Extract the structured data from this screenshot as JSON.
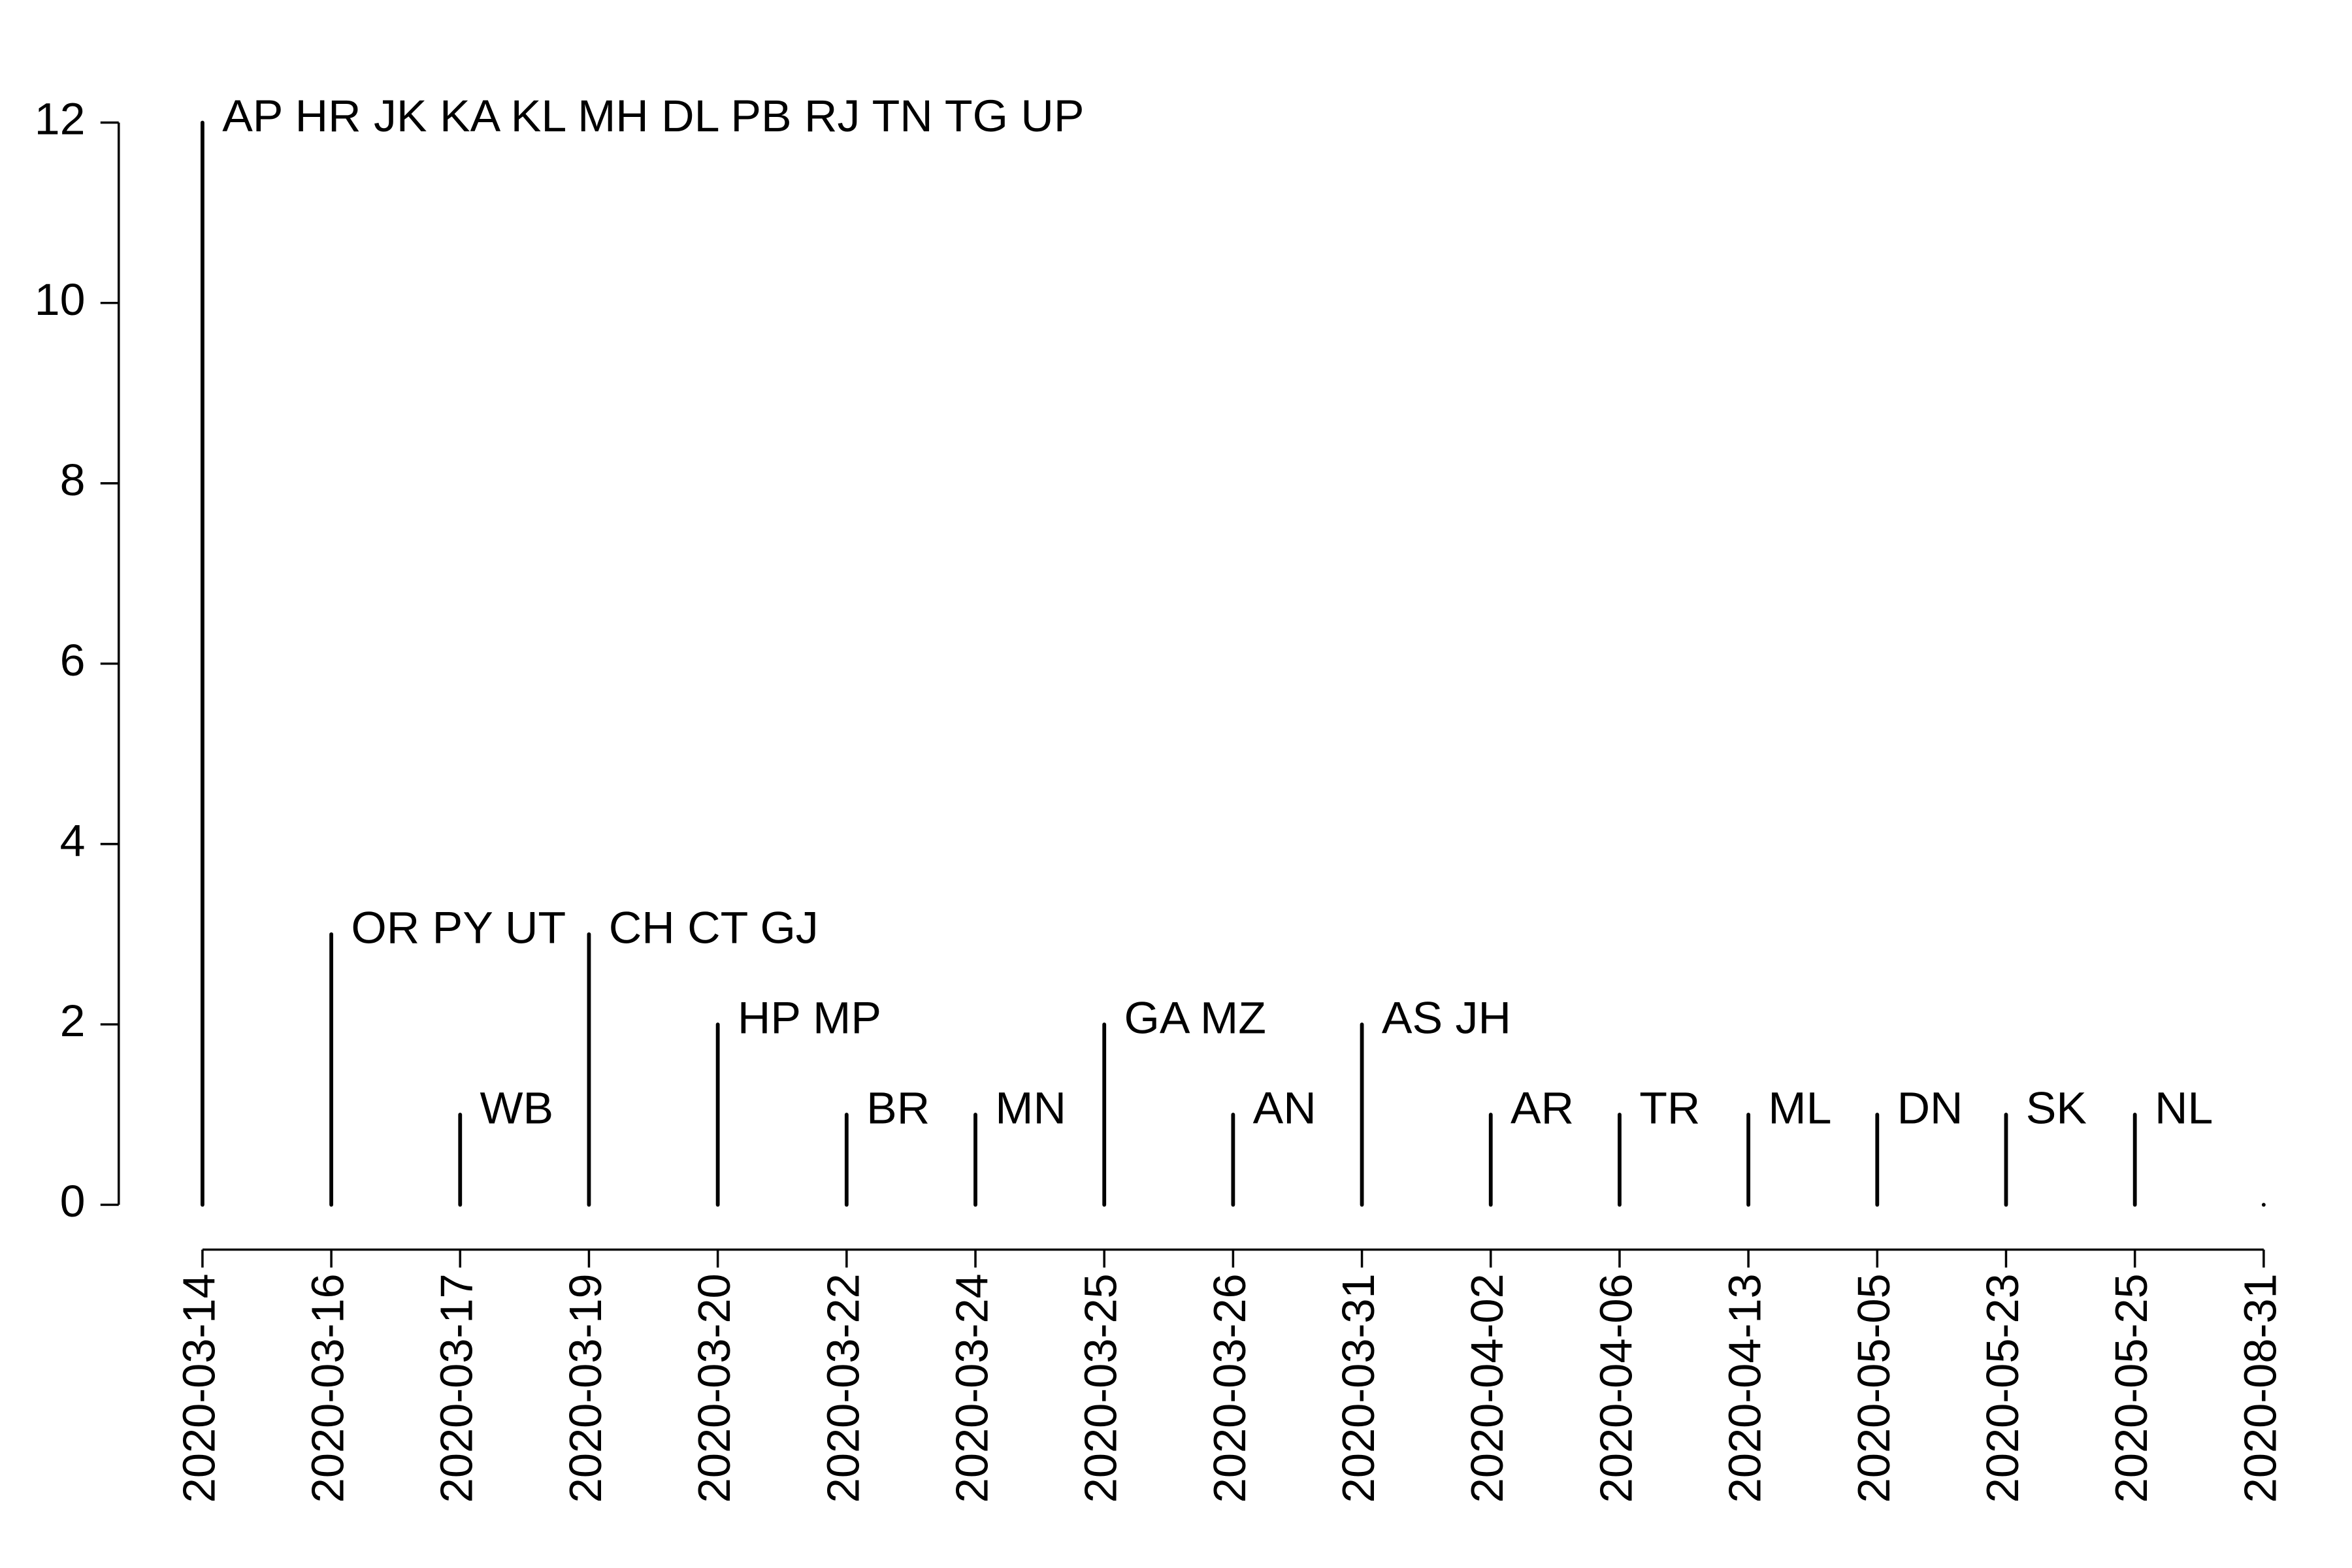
{
  "chart_data": {
    "type": "needle",
    "categories": [
      "2020-03-14",
      "2020-03-16",
      "2020-03-17",
      "2020-03-19",
      "2020-03-20",
      "2020-03-22",
      "2020-03-24",
      "2020-03-25",
      "2020-03-26",
      "2020-03-31",
      "2020-04-02",
      "2020-04-06",
      "2020-04-13",
      "2020-05-05",
      "2020-05-23",
      "2020-05-25",
      "2020-08-31"
    ],
    "values": [
      12,
      3,
      1,
      3,
      2,
      1,
      1,
      2,
      1,
      2,
      1,
      1,
      1,
      1,
      1,
      1,
      0
    ],
    "annotations": [
      "AP HR JK KA KL MH DL PB RJ TN TG UP",
      "OR PY UT",
      "WB",
      "CH CT GJ",
      "HP MP",
      "BR",
      "MN",
      "GA MZ",
      "AN",
      "AS JH",
      "AR",
      "TR",
      "ML",
      "DN",
      "SK",
      "NL",
      null
    ],
    "color": "#000000",
    "ylim": [
      0,
      12
    ],
    "yticks": [
      0,
      2,
      4,
      6,
      8,
      10,
      12
    ]
  }
}
